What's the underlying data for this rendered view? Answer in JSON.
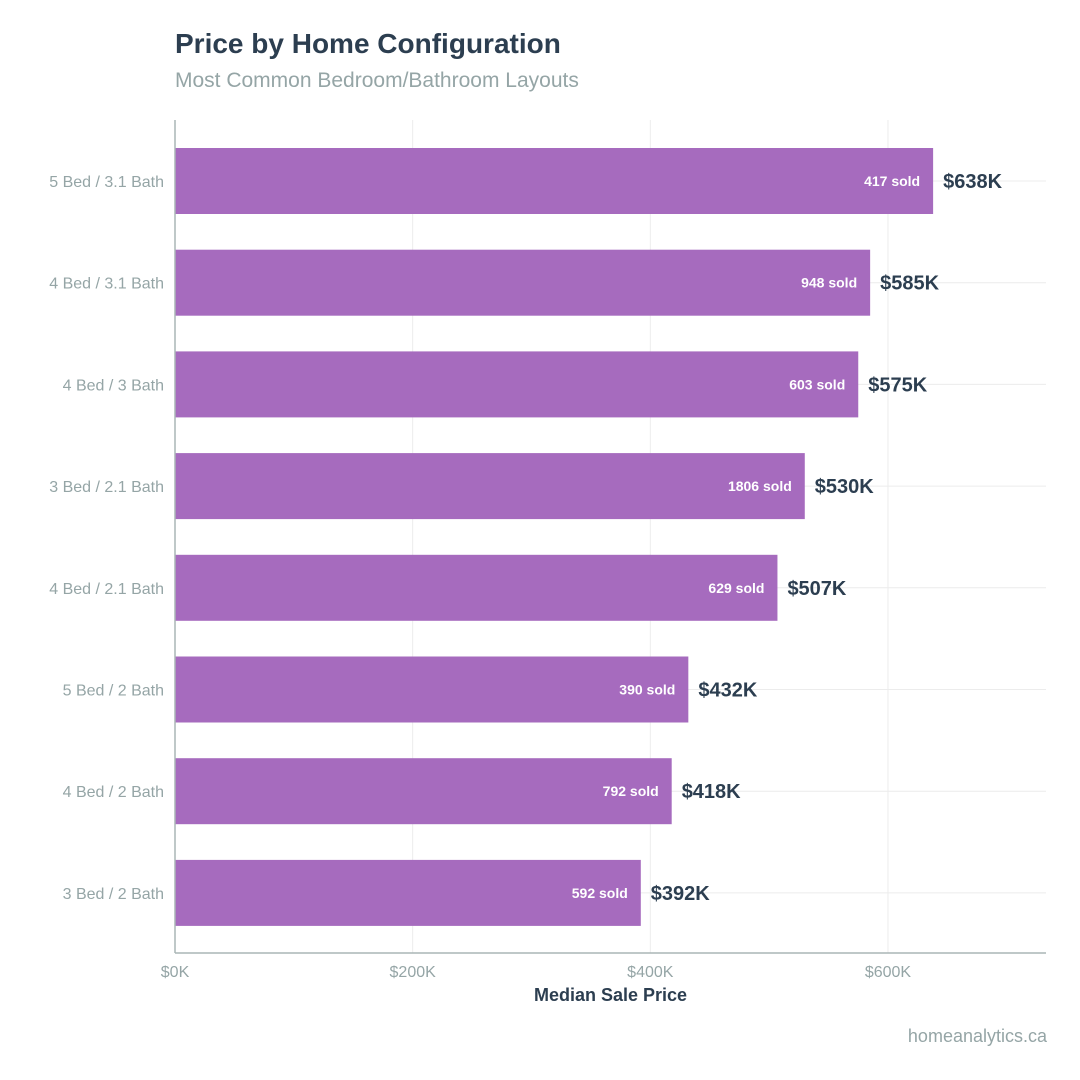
{
  "chart_data": {
    "type": "bar",
    "orientation": "horizontal",
    "title": "Price by Home Configuration",
    "subtitle": "Most Common Bedroom/Bathroom Layouts",
    "xlabel": "Median Sale Price",
    "ylabel": "",
    "xlim": [
      0,
      733
    ],
    "x_unit": "thousands of dollars",
    "x_ticks": [
      0,
      200,
      400,
      600
    ],
    "x_tick_labels": [
      "$0K",
      "$200K",
      "$400K",
      "$600K"
    ],
    "grid": true,
    "categories": [
      "5 Bed / 3.1 Bath",
      "4 Bed / 3.1 Bath",
      "4 Bed / 3 Bath",
      "3 Bed / 2.1 Bath",
      "4 Bed / 2.1 Bath",
      "5 Bed / 2 Bath",
      "4 Bed / 2 Bath",
      "3 Bed / 2 Bath"
    ],
    "values": [
      638,
      585,
      575,
      530,
      507,
      432,
      418,
      392
    ],
    "value_labels": [
      "$638K",
      "$585K",
      "$575K",
      "$530K",
      "$507K",
      "$432K",
      "$418K",
      "$392K"
    ],
    "sold_labels": [
      "417 sold",
      "948 sold",
      "603 sold",
      "1806 sold",
      "629 sold",
      "390 sold",
      "792 sold",
      "592 sold"
    ],
    "source": "homeanalytics.ca",
    "colors": {
      "bar": "#a66bbe",
      "text": "#2c3e50",
      "muted": "#95a5a6",
      "grid": "#ececec",
      "axis": "#aab5b6"
    }
  }
}
